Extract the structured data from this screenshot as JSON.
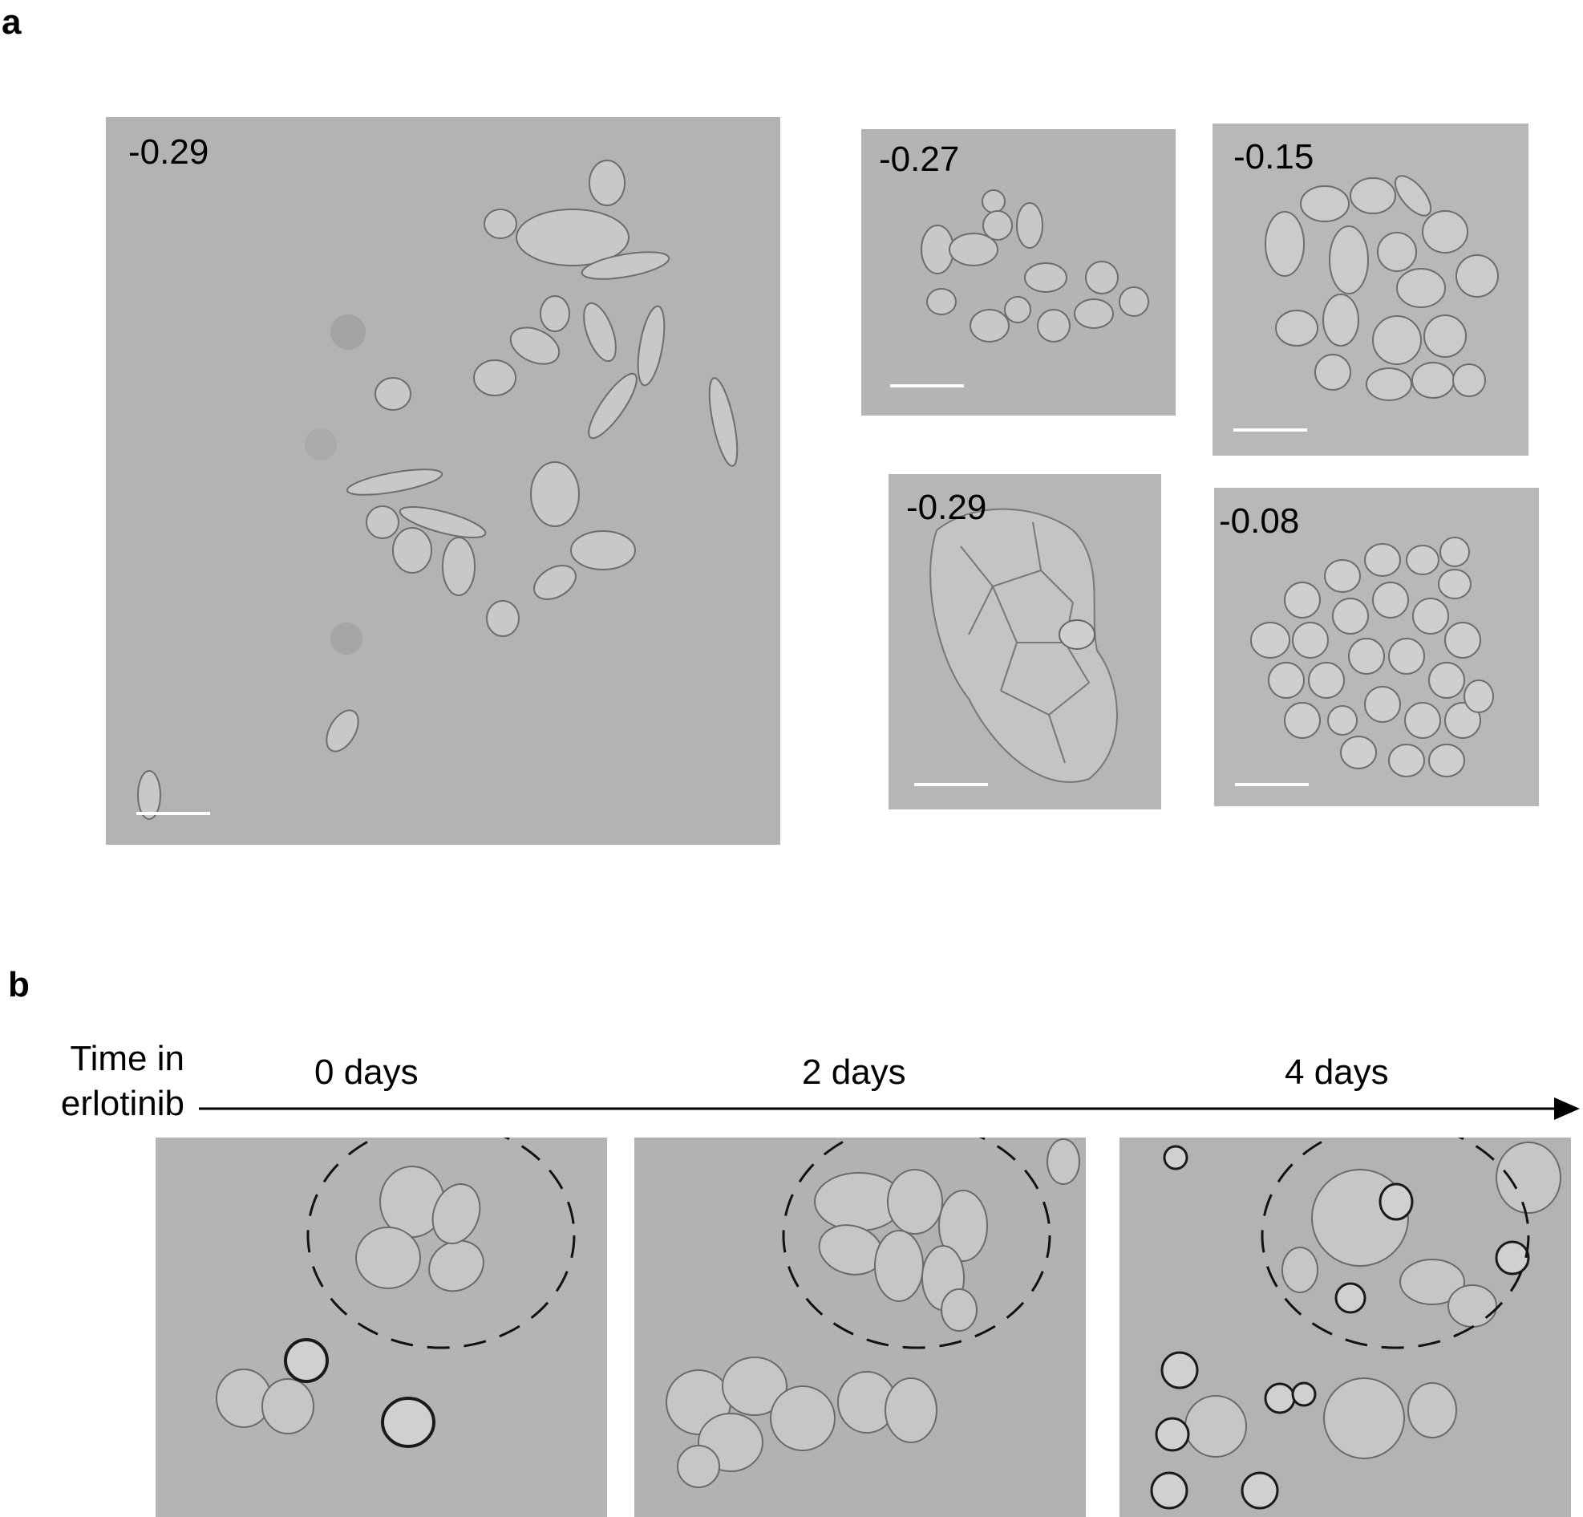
{
  "panel_a": {
    "letter": "a",
    "images": [
      {
        "value": "-0.29"
      },
      {
        "value": "-0.27"
      },
      {
        "value": "-0.15"
      },
      {
        "value": "-0.29"
      },
      {
        "value": "-0.08"
      }
    ]
  },
  "panel_b": {
    "letter": "b",
    "axis_title_line1": "Time in",
    "axis_title_line2": "erlotinib",
    "timepoints": [
      "0 days",
      "2 days",
      "4 days"
    ]
  },
  "colors": {
    "image_gray": "#b4b4b4",
    "scale_bar": "#ffffff",
    "dashed_circle": "#111111"
  }
}
